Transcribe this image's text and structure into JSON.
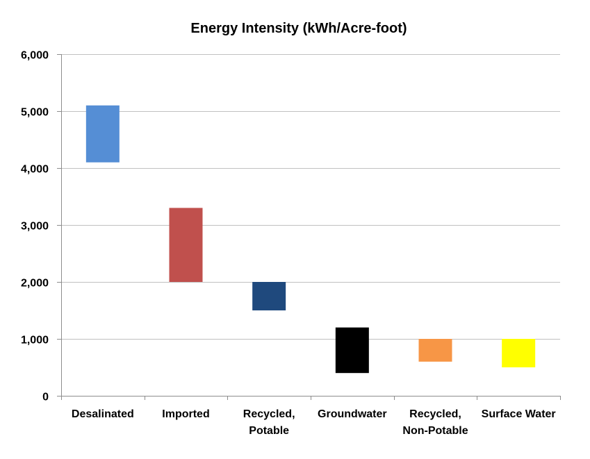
{
  "chart_data": {
    "type": "bar",
    "title": "Energy Intensity (kWh/Acre-foot)",
    "xlabel": "",
    "ylabel": "",
    "ylim": [
      0,
      6000
    ],
    "yticks": [
      0,
      1000,
      2000,
      3000,
      4000,
      5000,
      6000
    ],
    "ytick_labels": [
      "0",
      "1,000",
      "2,000",
      "3,000",
      "4,000",
      "5,000",
      "6,000"
    ],
    "grid": true,
    "categories": [
      [
        "Desalinated"
      ],
      [
        "Imported"
      ],
      [
        "Recycled,",
        "Potable"
      ],
      [
        "Groundwater"
      ],
      [
        "Recycled,",
        "Non-Potable"
      ],
      [
        "Surface Water"
      ]
    ],
    "ranges": [
      {
        "low": 4100,
        "high": 5100,
        "color": "#558ed5"
      },
      {
        "low": 2000,
        "high": 3300,
        "color": "#c0504d"
      },
      {
        "low": 1500,
        "high": 2000,
        "color": "#1f497d"
      },
      {
        "low": 400,
        "high": 1200,
        "color": "#000000"
      },
      {
        "low": 600,
        "high": 1000,
        "color": "#f79646"
      },
      {
        "low": 500,
        "high": 1000,
        "color": "#ffff00"
      }
    ]
  }
}
